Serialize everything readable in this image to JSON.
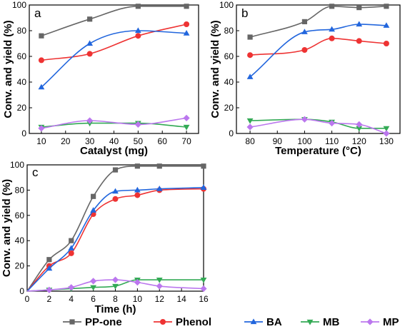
{
  "series_styles": [
    {
      "name": "PP-one",
      "color": "#666666",
      "marker": "square"
    },
    {
      "name": "Phenol",
      "color": "#ee3333",
      "marker": "circle"
    },
    {
      "name": "BA",
      "color": "#2266dd",
      "marker": "triangle-up"
    },
    {
      "name": "MB",
      "color": "#33aa55",
      "marker": "triangle-down"
    },
    {
      "name": "MP",
      "color": "#bb77ee",
      "marker": "diamond"
    }
  ],
  "chart_data": [
    {
      "panel": "a",
      "type": "line",
      "xlabel": "Catalyst (mg)",
      "ylabel": "Conv. and yield (%)",
      "xlim": [
        5,
        75
      ],
      "ylim": [
        0,
        100
      ],
      "xticks": [
        10,
        20,
        30,
        40,
        50,
        60,
        70
      ],
      "yticks": [
        0,
        20,
        40,
        60,
        80,
        100
      ],
      "x": [
        10,
        30,
        50,
        70
      ],
      "series": [
        {
          "name": "PP-one",
          "values": [
            76,
            89,
            99,
            99
          ]
        },
        {
          "name": "Phenol",
          "values": [
            57,
            62,
            76,
            85
          ]
        },
        {
          "name": "BA",
          "values": [
            36,
            70,
            80,
            78
          ]
        },
        {
          "name": "MB",
          "values": [
            5,
            8,
            8,
            5
          ]
        },
        {
          "name": "MP",
          "values": [
            4,
            10,
            7,
            12
          ]
        }
      ]
    },
    {
      "panel": "b",
      "type": "line",
      "xlabel": "Temperature (°C)",
      "ylabel": "Conv. and yield (%)",
      "xlim": [
        75,
        135
      ],
      "ylim": [
        0,
        100
      ],
      "xticks": [
        80,
        90,
        100,
        110,
        120,
        130
      ],
      "yticks": [
        0,
        20,
        40,
        60,
        80,
        100
      ],
      "x": [
        80,
        100,
        110,
        120,
        130
      ],
      "series": [
        {
          "name": "PP-one",
          "values": [
            75,
            87,
            99,
            98,
            99
          ]
        },
        {
          "name": "Phenol",
          "values": [
            61,
            65,
            74,
            72,
            70
          ]
        },
        {
          "name": "BA",
          "values": [
            44,
            79,
            81,
            85,
            84
          ]
        },
        {
          "name": "MB",
          "values": [
            10,
            11,
            9,
            4,
            4
          ]
        },
        {
          "name": "MP",
          "values": [
            5,
            11,
            8,
            7,
            0
          ]
        }
      ]
    },
    {
      "panel": "c",
      "type": "line",
      "xlabel": "Time (h)",
      "ylabel": "Conv. and yield (%)",
      "xlim": [
        0,
        16
      ],
      "ylim": [
        0,
        100
      ],
      "xticks": [
        0,
        2,
        4,
        6,
        8,
        10,
        12,
        14,
        16
      ],
      "yticks": [
        0,
        20,
        40,
        60,
        80,
        100
      ],
      "x": [
        2,
        4,
        6,
        8,
        10,
        12,
        16
      ],
      "series": [
        {
          "name": "PP-one",
          "values": [
            25,
            40,
            75,
            96,
            99,
            99,
            99
          ]
        },
        {
          "name": "Phenol",
          "values": [
            20,
            30,
            61,
            73,
            76,
            80,
            81
          ]
        },
        {
          "name": "BA",
          "values": [
            18,
            34,
            64,
            79,
            80,
            81,
            82
          ]
        },
        {
          "name": "MB",
          "values": [
            1,
            2,
            3,
            4,
            9,
            9,
            9
          ]
        },
        {
          "name": "MP",
          "values": [
            1,
            3,
            8,
            9,
            7,
            4,
            2
          ]
        }
      ]
    }
  ]
}
